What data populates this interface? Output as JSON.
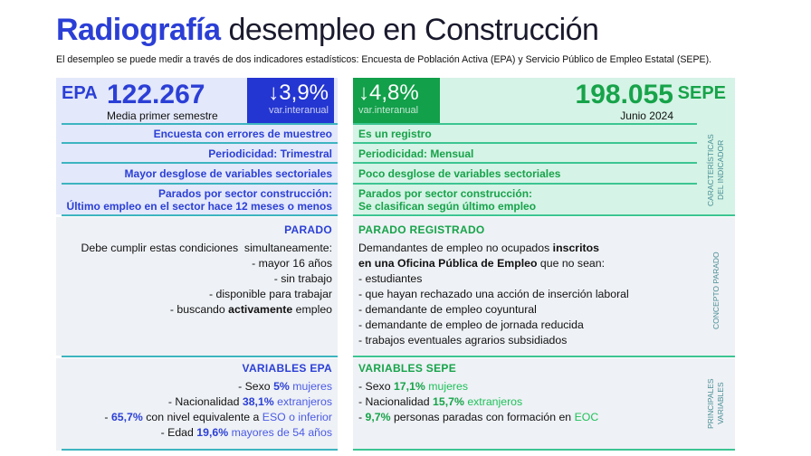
{
  "title": {
    "bold": "Radiografía",
    "rest": " desempleo en Construcción"
  },
  "subtitle": "El desempleo se puede medir a través de dos indicadores estadísticos: Encuesta de Población Activa (EPA) y Servicio Público de Empleo Estatal (SEPE).",
  "colors": {
    "epa": "#2b3fd6",
    "sepe": "#17a34a",
    "epa_line": "#3db4c0",
    "sepe_line": "#3cc593"
  },
  "epa": {
    "label": "EPA",
    "value": "122.267",
    "caption": "Media primer semestre",
    "variation": "↓3,9%",
    "variation_label": "var.interanual",
    "rows": [
      "Encuesta con errores de muestreo",
      "Periodicidad: Trimestral",
      "Mayor desglose de variables sectoriales"
    ],
    "row_last": [
      "Parados por sector construcción:",
      "Último empleo en el sector hace 12 meses o menos"
    ],
    "concept": {
      "head": "PARADO",
      "lines": [
        [
          {
            "t": "Debe cumplir estas condiciones  simultaneamente:",
            "s": ""
          }
        ],
        [
          {
            "t": "- mayor 16 años",
            "s": ""
          }
        ],
        [
          {
            "t": "- sin trabajo",
            "s": ""
          }
        ],
        [
          {
            "t": "- disponible para trabajar",
            "s": ""
          }
        ],
        [
          {
            "t": "- buscando ",
            "s": ""
          },
          {
            "t": "activamente",
            "s": "b"
          },
          {
            "t": " empleo",
            "s": ""
          }
        ]
      ]
    },
    "variables": {
      "head": "VARIABLES EPA",
      "lines": [
        [
          {
            "t": "- Sexo ",
            "s": ""
          },
          {
            "t": "5%",
            "s": "h"
          },
          {
            "t": " mujeres",
            "s": "a"
          }
        ],
        [
          {
            "t": "- Nacionalidad ",
            "s": ""
          },
          {
            "t": "38,1%",
            "s": "h"
          },
          {
            "t": " extranjeros",
            "s": "a"
          }
        ],
        [
          {
            "t": "- ",
            "s": ""
          },
          {
            "t": "65,7%",
            "s": "h"
          },
          {
            "t": " con nivel equivalente a ",
            "s": ""
          },
          {
            "t": "ESO o inferior",
            "s": "a"
          }
        ],
        [
          {
            "t": "- Edad ",
            "s": ""
          },
          {
            "t": "19,6%",
            "s": "h"
          },
          {
            "t": " mayores de 54 años",
            "s": "a"
          }
        ]
      ]
    }
  },
  "sepe": {
    "label": "SEPE",
    "value": "198.055",
    "caption": "Junio 2024",
    "variation": "↓4,8%",
    "variation_label": "var.interanual",
    "rows": [
      "Es un registro",
      "Periodicidad: Mensual",
      "Poco desglose de variables sectoriales"
    ],
    "row_last": [
      "Parados por sector construcción:",
      "Se clasifican según último empleo"
    ],
    "concept": {
      "head": "PARADO REGISTRADO",
      "lines": [
        [
          {
            "t": "Demandantes de empleo no ocupados ",
            "s": ""
          },
          {
            "t": "inscritos",
            "s": "b"
          }
        ],
        [
          {
            "t": "en una Oficina Pública de Empleo",
            "s": "b"
          },
          {
            "t": " que no sean:",
            "s": ""
          }
        ],
        [
          {
            "t": "- estudiantes",
            "s": ""
          }
        ],
        [
          {
            "t": "- que hayan rechazado una acción de inserción laboral",
            "s": ""
          }
        ],
        [
          {
            "t": "- demandante de empleo coyuntural",
            "s": ""
          }
        ],
        [
          {
            "t": "- demandante de empleo de jornada reducida",
            "s": ""
          }
        ],
        [
          {
            "t": "- trabajos eventuales agrarios subsidiados",
            "s": ""
          }
        ]
      ]
    },
    "variables": {
      "head": "VARIABLES SEPE",
      "lines": [
        [
          {
            "t": "- Sexo ",
            "s": ""
          },
          {
            "t": "17,1%",
            "s": "h"
          },
          {
            "t": " mujeres",
            "s": "a"
          }
        ],
        [
          {
            "t": "- Nacionalidad ",
            "s": ""
          },
          {
            "t": "15,7%",
            "s": "h"
          },
          {
            "t": " extranjeros",
            "s": "a"
          }
        ],
        [
          {
            "t": "- ",
            "s": ""
          },
          {
            "t": "9,7%",
            "s": "h"
          },
          {
            "t": " personas paradas con formación en ",
            "s": ""
          },
          {
            "t": "EOC",
            "s": "a"
          }
        ]
      ]
    }
  },
  "side_labels": {
    "characteristics": "Características del indicador",
    "concept": "Concepto parado",
    "variables": "Principales variables"
  }
}
